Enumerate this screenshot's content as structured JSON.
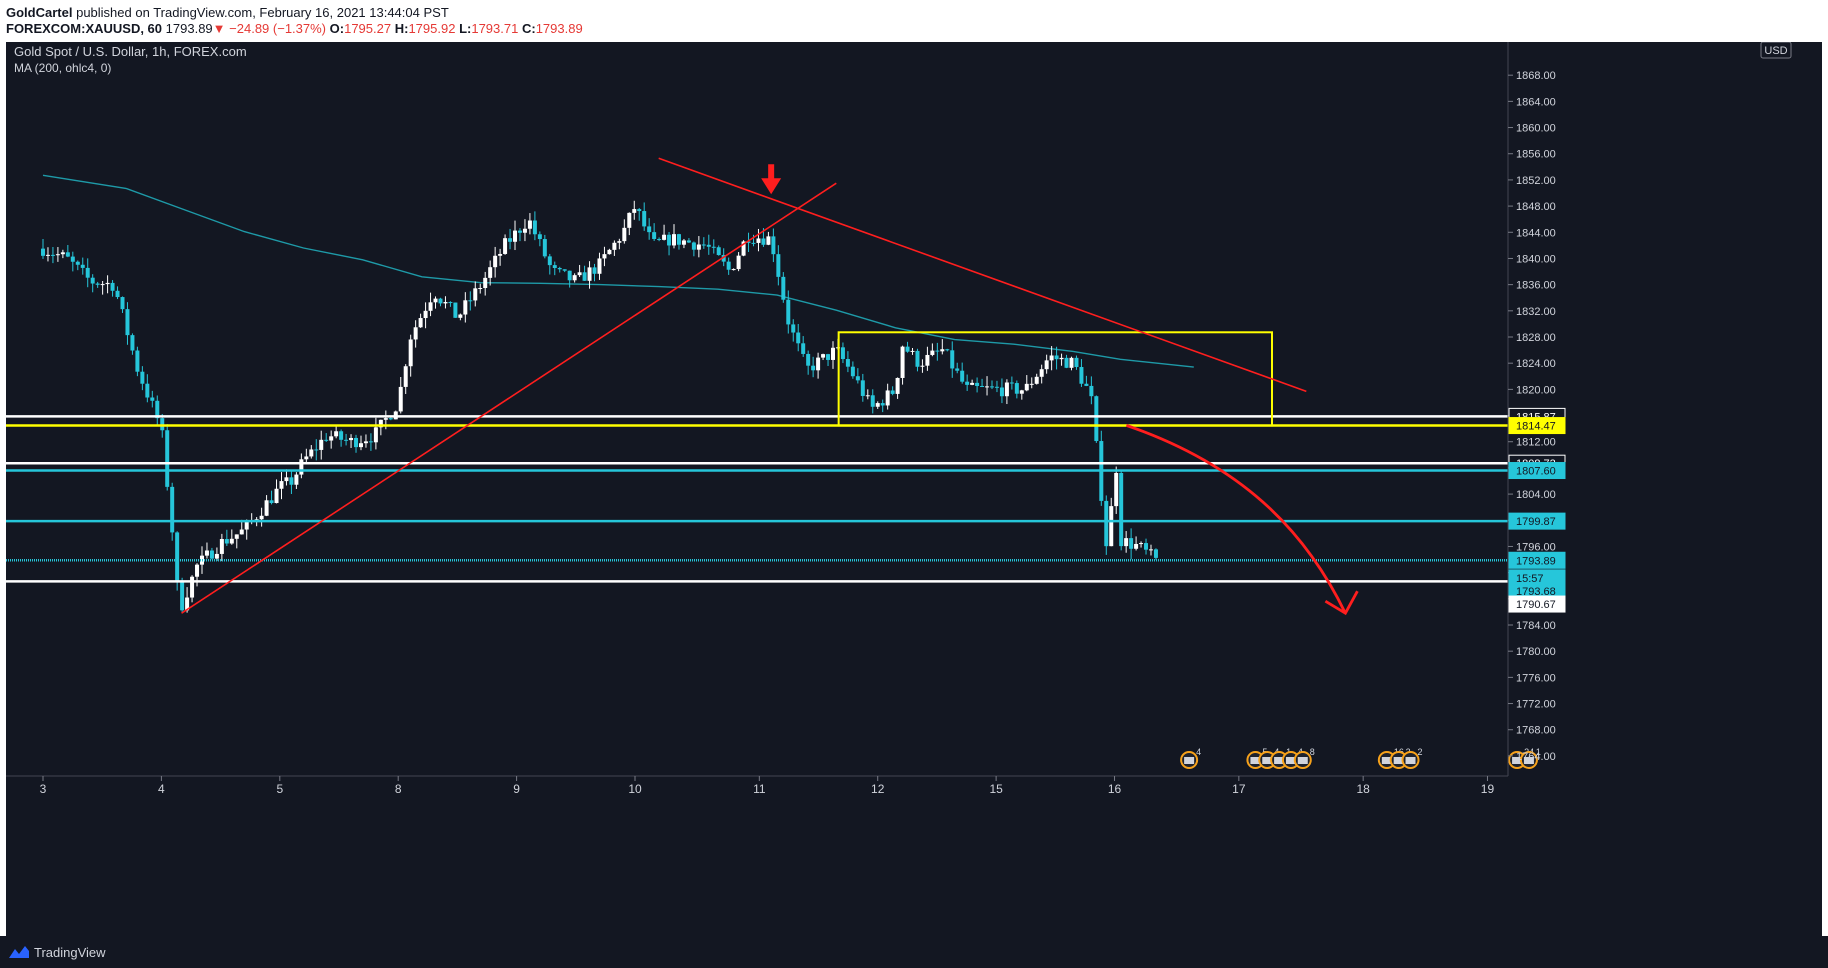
{
  "header": {
    "author": "GoldCartel",
    "published": "published on TradingView.com, February 16, 2021 13:44:04 PST",
    "symbol": "FOREXCOM:XAUUSD, 60",
    "last": "1793.89",
    "change": "−24.89 (−1.37%)",
    "o_label": "O:",
    "o_value": "1795.27",
    "h_label": "H:",
    "h_value": "1795.92",
    "l_label": "L:",
    "l_value": "1793.71",
    "c_label": "C:",
    "c_value": "1793.89"
  },
  "legend": {
    "title": "Gold Spot / U.S. Dollar, 1h, FOREX.com",
    "indicator": "MA (200, ohlc4, 0)",
    "currency": "USD"
  },
  "footer": {
    "brand": "TradingView"
  },
  "colors": {
    "background": "#131722",
    "up": "#ffffff",
    "down": "#26c6da",
    "ma": "#1e9aa8",
    "red": "#ff1e1e",
    "yellow": "#ffff00",
    "white": "#ffffff",
    "cyan": "#26c6da"
  },
  "chart_data": {
    "type": "candlestick",
    "title": "Gold Spot / U.S. Dollar, 1h, FOREX.com",
    "ylim": [
      1762,
      1872
    ],
    "xlim": [
      3.3,
      24.5
    ],
    "x_index_note": "trading-day index",
    "x_ticks": [
      {
        "x": 3.3,
        "label": "3"
      },
      {
        "x": 4.3,
        "label": "4"
      },
      {
        "x": 5.3,
        "label": "5"
      },
      {
        "x": 6.3,
        "label": "8"
      },
      {
        "x": 7.3,
        "label": "9"
      },
      {
        "x": 8.3,
        "label": "10"
      },
      {
        "x": 9.35,
        "label": "11"
      },
      {
        "x": 10.35,
        "label": "12"
      },
      {
        "x": 11.35,
        "label": "15"
      },
      {
        "x": 12.35,
        "label": "16"
      },
      {
        "x": 13.4,
        "label": "17"
      },
      {
        "x": 14.45,
        "label": "18"
      },
      {
        "x": 15.5,
        "label": "19"
      }
    ],
    "y_ticks": [
      1764,
      1768,
      1772,
      1776,
      1780,
      1784,
      1788,
      1792,
      1796,
      1800,
      1804,
      1808,
      1812,
      1816,
      1820,
      1824,
      1828,
      1832,
      1836,
      1840,
      1844,
      1848,
      1852,
      1856,
      1860,
      1864,
      1868
    ],
    "y_tick_labels": [
      "1764.00",
      "1768.00",
      "1772.00",
      "1776.00",
      "1780.00",
      "1784.00",
      "",
      "",
      "1796.00",
      "",
      "1804.00",
      "",
      "1812.00",
      "",
      "1820.00",
      "1824.00",
      "1828.00",
      "1832.00",
      "1836.00",
      "1840.00",
      "1844.00",
      "1848.00",
      "1852.00",
      "1856.00",
      "1860.00",
      "1864.00",
      "1868.00"
    ],
    "price_tags": [
      {
        "value": 1815.87,
        "label": "1815.87",
        "style": "dark"
      },
      {
        "value": 1814.47,
        "label": "1814.47",
        "style": "yellow"
      },
      {
        "value": 1808.72,
        "label": "1808.72",
        "style": "dark"
      },
      {
        "value": 1807.6,
        "label": "1807.60",
        "style": "cyan"
      },
      {
        "value": 1799.87,
        "label": "1799.87",
        "style": "cyan"
      },
      {
        "value": 1793.89,
        "label": "1793.89",
        "style": "cyan"
      },
      {
        "value": 1791.2,
        "label": "15:57",
        "style": "cyan"
      },
      {
        "value": 1789.2,
        "label": "1793.68",
        "style": "cyan"
      },
      {
        "value": 1787.2,
        "label": "1790.67",
        "style": "white"
      }
    ],
    "horizontal_lines": [
      {
        "value": 1815.87,
        "color": "#ffffff"
      },
      {
        "value": 1814.47,
        "color": "#ffff00"
      },
      {
        "value": 1808.72,
        "color": "#ffffff"
      },
      {
        "value": 1807.6,
        "color": "#26c6da"
      },
      {
        "value": 1799.87,
        "color": "#26c6da"
      },
      {
        "value": 1793.89,
        "color": "#26c6da",
        "dotted": true
      },
      {
        "value": 1790.67,
        "color": "#ffffff"
      }
    ],
    "anchors": [
      [
        3.3,
        1841.5
      ],
      [
        3.5,
        1840
      ],
      [
        3.7,
        1836.5
      ],
      [
        3.9,
        1836
      ],
      [
        4.1,
        1823
      ],
      [
        4.3,
        1814
      ],
      [
        4.4,
        1797
      ],
      [
        4.45,
        1786
      ],
      [
        4.6,
        1793
      ],
      [
        4.8,
        1796.5
      ],
      [
        5.0,
        1798.5
      ],
      [
        5.3,
        1805
      ],
      [
        5.4,
        1806
      ],
      [
        5.5,
        1809
      ],
      [
        5.7,
        1813
      ],
      [
        5.9,
        1812
      ],
      [
        6.1,
        1813
      ],
      [
        6.3,
        1818
      ],
      [
        6.4,
        1828
      ],
      [
        6.6,
        1835
      ],
      [
        6.8,
        1831
      ],
      [
        7.0,
        1836
      ],
      [
        7.2,
        1842
      ],
      [
        7.4,
        1846
      ],
      [
        7.6,
        1838
      ],
      [
        7.8,
        1836.5
      ],
      [
        8.0,
        1839
      ],
      [
        8.2,
        1844
      ],
      [
        8.3,
        1848
      ],
      [
        8.45,
        1842
      ],
      [
        8.6,
        1843
      ],
      [
        8.9,
        1842
      ],
      [
        9.1,
        1838
      ],
      [
        9.25,
        1843.5
      ],
      [
        9.45,
        1843
      ],
      [
        9.6,
        1830
      ],
      [
        9.75,
        1823
      ],
      [
        10.0,
        1826
      ],
      [
        10.15,
        1822
      ],
      [
        10.3,
        1817
      ],
      [
        10.5,
        1820
      ],
      [
        10.55,
        1827
      ],
      [
        10.7,
        1824
      ],
      [
        10.9,
        1826
      ],
      [
        11.1,
        1820
      ],
      [
        11.3,
        1820
      ],
      [
        11.6,
        1820
      ],
      [
        11.8,
        1825
      ],
      [
        12.0,
        1824
      ],
      [
        12.15,
        1819
      ],
      [
        12.25,
        1802
      ],
      [
        12.3,
        1793
      ],
      [
        12.35,
        1812.5
      ],
      [
        12.4,
        1797
      ],
      [
        12.55,
        1796
      ],
      [
        12.7,
        1793.9
      ]
    ],
    "ma200": [
      [
        3.3,
        1852.7
      ],
      [
        4.0,
        1850.7
      ],
      [
        4.5,
        1847.4
      ],
      [
        5.0,
        1844.1
      ],
      [
        5.5,
        1841.6
      ],
      [
        6.0,
        1839.8
      ],
      [
        6.5,
        1837.2
      ],
      [
        7.0,
        1836.3
      ],
      [
        7.5,
        1836.2
      ],
      [
        8.0,
        1836
      ],
      [
        8.5,
        1835.7
      ],
      [
        9.0,
        1835.3
      ],
      [
        9.5,
        1834.4
      ],
      [
        10.0,
        1832.1
      ],
      [
        10.5,
        1829.4
      ],
      [
        11.0,
        1827.6
      ],
      [
        11.5,
        1826.9
      ],
      [
        12.0,
        1825.8
      ],
      [
        12.4,
        1824.6
      ],
      [
        13.02,
        1823.4
      ]
    ],
    "trendlines": [
      {
        "from": [
          4.47,
          1785.8
        ],
        "to": [
          10.0,
          1851.5
        ],
        "color": "#ff1e1e"
      },
      {
        "from": [
          8.5,
          1855.3
        ],
        "to": [
          13.97,
          1819.7
        ],
        "color": "#ff1e1e"
      }
    ],
    "rectangle": {
      "x0": 10.02,
      "x1": 13.68,
      "y0": 1814.47,
      "y1": 1828.72,
      "color": "#ffff00"
    },
    "projection_arrow": {
      "points": [
        [
          12.45,
          1814.5
        ],
        [
          13.5,
          1808
        ],
        [
          14.0,
          1797
        ],
        [
          14.3,
          1785.8
        ]
      ],
      "color": "#ff1e1e"
    },
    "marker_arrow": {
      "x": 9.45,
      "y": 1849.5,
      "color": "#ff1e1e"
    },
    "event_icons": [
      {
        "x": 12.98,
        "count": "4"
      },
      {
        "x": 13.54,
        "count": "5"
      },
      {
        "x": 13.64,
        "count": "4"
      },
      {
        "x": 13.74,
        "count": "1"
      },
      {
        "x": 13.84,
        "count": "4"
      },
      {
        "x": 13.94,
        "count": "8"
      },
      {
        "x": 14.65,
        "count": "16"
      },
      {
        "x": 14.75,
        "count": "2"
      },
      {
        "x": 14.85,
        "count": "2"
      },
      {
        "x": 15.75,
        "count": "24"
      },
      {
        "x": 15.85,
        "count": "1"
      }
    ]
  }
}
